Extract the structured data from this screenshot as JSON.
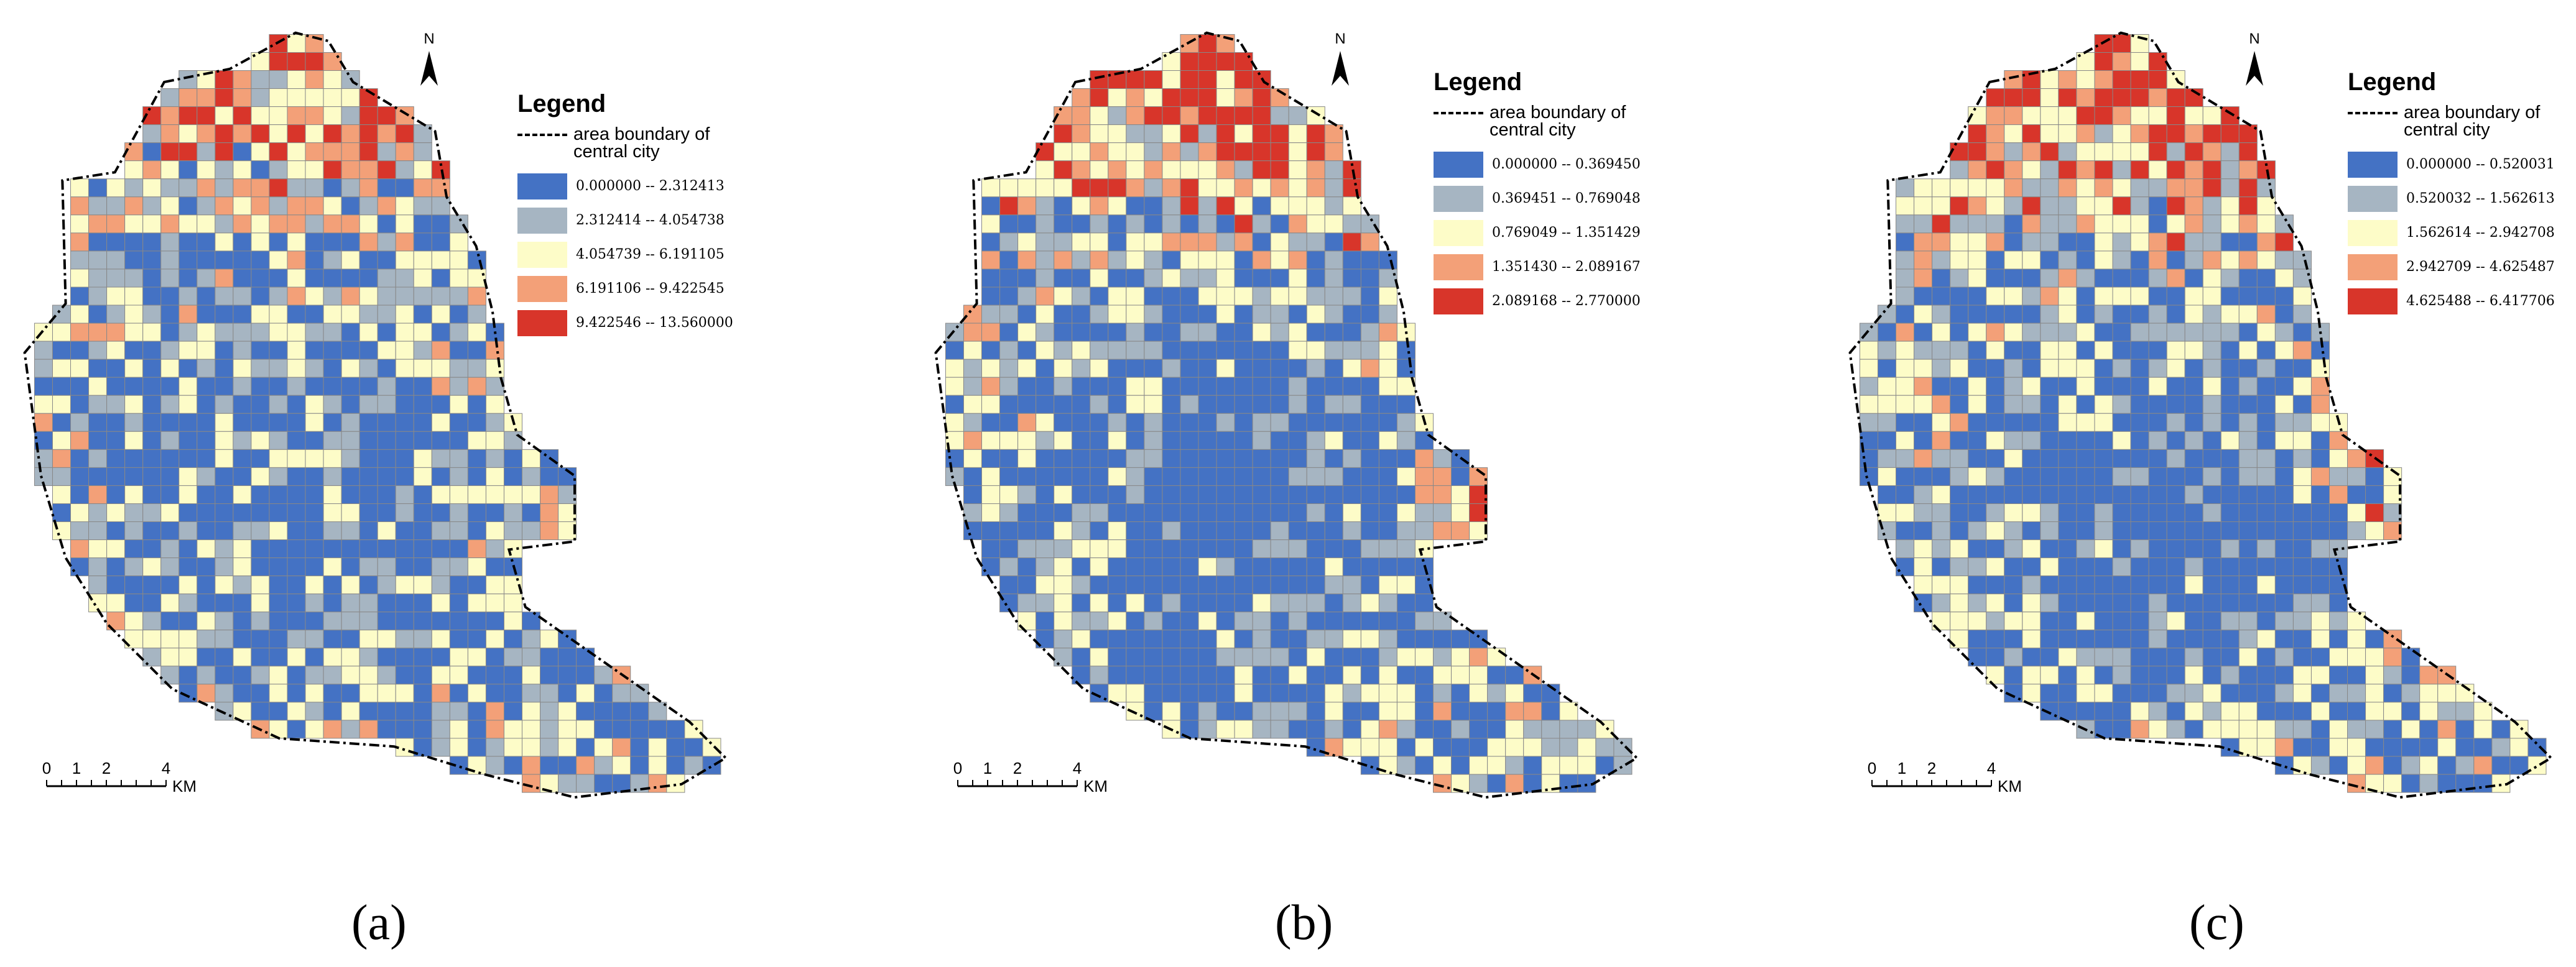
{
  "panels": [
    {
      "label": "(a)",
      "north": "N",
      "legend": {
        "title": "Legend",
        "boundary": "area boundary of central city",
        "classes": [
          {
            "label": "0.000000 -- 2.312413",
            "color": "#4472c4"
          },
          {
            "label": "2.312414 -- 4.054738",
            "color": "#a6b5c2"
          },
          {
            "label": "4.054739 -- 6.191105",
            "color": "#fdfcc8"
          },
          {
            "label": "6.191106 -- 9.422545",
            "color": "#f3a078"
          },
          {
            "label": "9.422546 -- 13.560000",
            "color": "#d8352a"
          }
        ]
      },
      "scale_bar": {
        "ticks": [
          "0",
          "1",
          "2",
          "4"
        ],
        "unit": "KM"
      }
    },
    {
      "label": "(b)",
      "north": "N",
      "legend": {
        "title": "Legend",
        "boundary": "area boundary of central city",
        "classes": [
          {
            "label": "0.000000 -- 0.369450",
            "color": "#4472c4"
          },
          {
            "label": "0.369451 -- 0.769048",
            "color": "#a6b5c2"
          },
          {
            "label": "0.769049 -- 1.351429",
            "color": "#fdfcc8"
          },
          {
            "label": "1.351430 -- 2.089167",
            "color": "#f3a078"
          },
          {
            "label": "2.089168 -- 2.770000",
            "color": "#d8352a"
          }
        ]
      },
      "scale_bar": {
        "ticks": [
          "0",
          "1",
          "2",
          "4"
        ],
        "unit": "KM"
      }
    },
    {
      "label": "(c)",
      "north": "N",
      "legend": {
        "title": "Legend",
        "boundary": "area boundary of central city",
        "classes": [
          {
            "label": "0.000000 -- 0.520031",
            "color": "#4472c4"
          },
          {
            "label": "0.520032 -- 1.562613",
            "color": "#a6b5c2"
          },
          {
            "label": "1.562614 -- 2.942708",
            "color": "#fdfcc8"
          },
          {
            "label": "2.942709 -- 4.625487",
            "color": "#f3a078"
          },
          {
            "label": "4.625488 -- 6.417706",
            "color": "#d8352a"
          }
        ]
      },
      "scale_bar": {
        "ticks": [
          "0",
          "1",
          "2",
          "4"
        ],
        "unit": "KM"
      }
    }
  ]
}
